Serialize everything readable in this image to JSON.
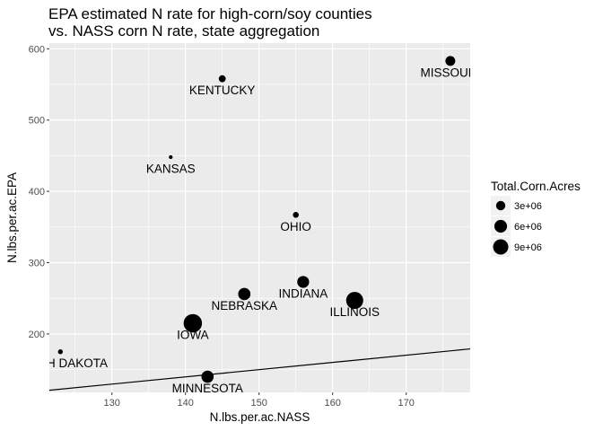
{
  "chart_data": {
    "type": "scatter",
    "title_lines": [
      "EPA estimated N rate for high-corn/soy counties",
      "vs. NASS corn N rate, state aggregation"
    ],
    "xlabel": "N.lbs.per.ac.NASS",
    "ylabel": "N.lbs.per.ac.EPA",
    "xlim": [
      121.5,
      178.7
    ],
    "ylim": [
      118,
      608
    ],
    "x_ticks": [
      130,
      140,
      150,
      160,
      170
    ],
    "y_ticks": [
      200,
      300,
      400,
      500,
      600
    ],
    "grid": true,
    "background": "#ebebeb",
    "point_color": "#000000",
    "line": {
      "x": [
        121.5,
        178.7
      ],
      "y": [
        121,
        179
      ]
    },
    "points": [
      {
        "label": "MISSOURI",
        "x": 176,
        "y": 583,
        "acres": 3400000.0
      },
      {
        "label": "KENTUCKY",
        "x": 145,
        "y": 558,
        "acres": 1500000.0
      },
      {
        "label": "KANSAS",
        "x": 138,
        "y": 448,
        "acres": 300000.0
      },
      {
        "label": "OHIO",
        "x": 155,
        "y": 367,
        "acres": 1000000.0
      },
      {
        "label": "INDIANA",
        "x": 156,
        "y": 273,
        "acres": 5200000.0
      },
      {
        "label": "ILLINOIS",
        "x": 163,
        "y": 247,
        "acres": 11500000.0
      },
      {
        "label": "NEBRASKA",
        "x": 148,
        "y": 256,
        "acres": 5600000.0
      },
      {
        "label": "IOWA",
        "x": 141,
        "y": 215,
        "acres": 13500000.0
      },
      {
        "label": "SOUTH DAKOTA",
        "x": 123,
        "y": 175,
        "acres": 600000.0
      },
      {
        "label": "MINNESOTA",
        "x": 143,
        "y": 140,
        "acres": 5500000.0
      }
    ],
    "legend": {
      "title": "Total.Corn.Acres",
      "position": "right",
      "entries": [
        {
          "label": "3e+06",
          "value": 3000000.0
        },
        {
          "label": "6e+06",
          "value": 6000000.0
        },
        {
          "label": "9e+06",
          "value": 9000000.0
        }
      ]
    }
  }
}
